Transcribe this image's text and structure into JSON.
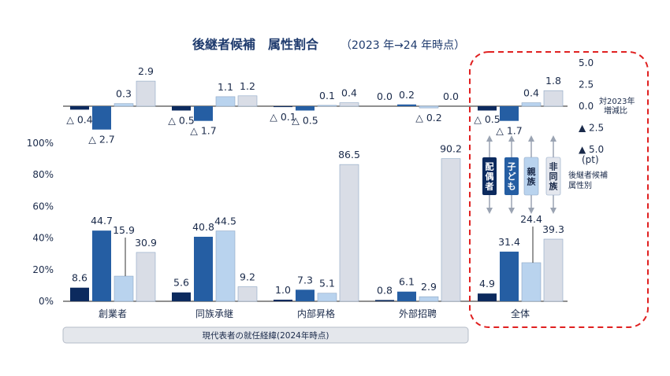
{
  "chart_data": {
    "type": "bar",
    "title": "後継者候補　属性割合",
    "subtitle": "（2023 年→24 年時点）",
    "categories": [
      "創業者",
      "同族承継",
      "内部昇格",
      "外部招聘",
      "全体"
    ],
    "xlabel": "現代表者の就任経緯(2024年時点)",
    "series": [
      {
        "name": "配偶者",
        "color": "#0c2a5e",
        "values": [
          8.6,
          5.6,
          1.0,
          0.8,
          4.9
        ],
        "labels": [
          "8.6",
          "5.6",
          "1.0",
          "0.8",
          "4.9"
        ]
      },
      {
        "name": "子ども",
        "color": "#255ea3",
        "values": [
          44.7,
          40.8,
          7.3,
          6.1,
          31.4
        ],
        "labels": [
          "44.7",
          "40.8",
          "7.3",
          "6.1",
          "31.4"
        ]
      },
      {
        "name": "親族",
        "color": "#b9d3ee",
        "values": [
          15.9,
          44.5,
          5.1,
          2.9,
          24.4
        ],
        "labels": [
          "15.9",
          "44.5",
          "5.1",
          "2.9",
          "24.4"
        ]
      },
      {
        "name": "非同族",
        "color": "#d9dde6",
        "values": [
          30.9,
          9.2,
          86.5,
          90.2,
          39.3
        ],
        "labels": [
          "30.9",
          "9.2",
          "86.5",
          "90.2",
          "39.3"
        ]
      }
    ],
    "ylim": [
      0,
      100
    ],
    "yticks": [
      "0%",
      "20%",
      "40%",
      "60%",
      "80%",
      "100%"
    ],
    "change": {
      "ylim": [
        -5,
        5
      ],
      "yticks": [
        "5.0",
        "2.5",
        "0.0",
        "▲ 2.5",
        "▲ 5.0"
      ],
      "yticks_values": [
        5,
        2.5,
        0,
        -2.5,
        -5
      ],
      "ylabel": "対2023年\n増減比",
      "unit": "(pt)",
      "series": [
        {
          "name": "配偶者",
          "values": [
            -0.4,
            -0.5,
            -0.1,
            0.0,
            -0.5
          ],
          "labels": [
            "△ 0.4",
            "△ 0.5",
            "△ 0.1",
            "0.0",
            "△ 0.5"
          ]
        },
        {
          "name": "子ども",
          "values": [
            -2.7,
            -1.7,
            -0.5,
            0.2,
            -1.7
          ],
          "labels": [
            "△ 2.7",
            "△ 1.7",
            "△ 0.5",
            "0.2",
            "△ 1.7"
          ]
        },
        {
          "name": "親族",
          "values": [
            0.3,
            1.1,
            0.1,
            -0.2,
            0.4
          ],
          "labels": [
            "0.3",
            "1.1",
            "0.1",
            "△ 0.2",
            "0.4"
          ]
        },
        {
          "name": "非同族",
          "values": [
            2.9,
            1.2,
            0.4,
            0.0,
            1.8
          ],
          "labels": [
            "2.9",
            "1.2",
            "0.4",
            "0.0",
            "1.8"
          ]
        }
      ]
    },
    "legend": {
      "items": [
        "配偶者",
        "子ども",
        "親族",
        "非同族"
      ],
      "caption": "後継者候補\n属性別",
      "placement": "right"
    },
    "highlight": {
      "category": "全体",
      "style": "red dashed rounded box"
    },
    "grid": false
  }
}
